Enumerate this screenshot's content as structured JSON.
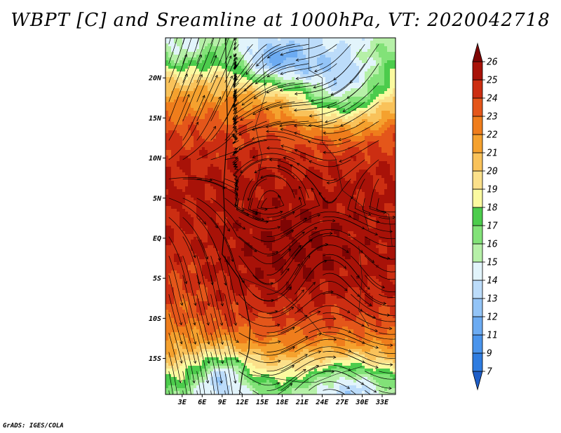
{
  "title": "WBPT [C] and Sreamline at 1000hPa, VT: 2020042718",
  "credit": "GrADS: IGES/COLA",
  "chart_data": {
    "type": "heatmap",
    "variable": "WBPT [C]",
    "overlay": "streamlines",
    "level": "1000hPa",
    "valid_time": "2020042718",
    "x_tick_labels": [
      "3E",
      "6E",
      "9E",
      "12E",
      "15E",
      "18E",
      "21E",
      "24E",
      "27E",
      "30E",
      "33E"
    ],
    "x_ticks": [
      3,
      6,
      9,
      12,
      15,
      18,
      21,
      24,
      27,
      30,
      33
    ],
    "y_tick_labels": [
      "20N",
      "15N",
      "10N",
      "5N",
      "EQ",
      "5S",
      "10S",
      "15S"
    ],
    "y_ticks": [
      20,
      15,
      10,
      5,
      0,
      -5,
      -10,
      -15
    ],
    "xlim": [
      0.5,
      35
    ],
    "ylim": [
      -19.5,
      25
    ],
    "colorbar": {
      "labels": [
        "7",
        "9",
        "11",
        "12",
        "13",
        "14",
        "15",
        "16",
        "17",
        "18",
        "19",
        "20",
        "21",
        "22",
        "23",
        "24",
        "25",
        "26"
      ],
      "colors": [
        "#1e5ec8",
        "#2f7ce0",
        "#4a94ec",
        "#6cabf2",
        "#93c4f7",
        "#bcdcfa",
        "#e2f4fb",
        "#b6f0a8",
        "#82e278",
        "#4ccc4c",
        "#fbfaa0",
        "#fbe08a",
        "#f9c25a",
        "#f5a12e",
        "#ef7d1c",
        "#e4561a",
        "#cc2e12",
        "#a81208",
        "#7e0504"
      ]
    }
  }
}
